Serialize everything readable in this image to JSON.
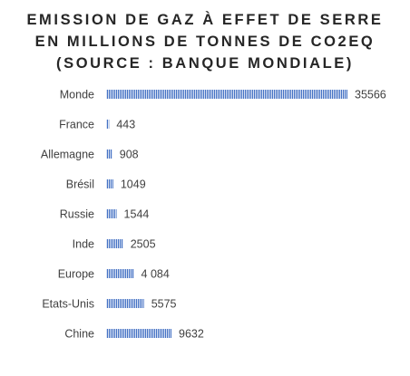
{
  "chart_data": {
    "type": "bar",
    "orientation": "horizontal",
    "title_lines": [
      "EMISSION DE GAZ À EFFET DE SERRE",
      "EN MILLIONS DE TONNES DE CO2EQ",
      "(SOURCE : BANQUE MONDIALE)"
    ],
    "categories": [
      "Monde",
      "France",
      "Allemagne",
      "Brésil",
      "Russie",
      "Inde",
      "Europe",
      "Etats-Unis",
      "Chine"
    ],
    "values": [
      35566,
      443,
      908,
      1049,
      1544,
      2505,
      4084,
      5575,
      9632
    ],
    "value_labels": [
      "35566",
      "443",
      "908",
      "1049",
      "1544",
      "2505",
      "4 084",
      "5575",
      "9632"
    ],
    "xlim": [
      0,
      35566
    ],
    "grid": false,
    "legend": "none",
    "bar_style": "vertical-hatch",
    "colors": {
      "bar": "#4472c4",
      "hatch_gap": "#ffffff",
      "text": "#404040",
      "title": "#262626"
    }
  }
}
